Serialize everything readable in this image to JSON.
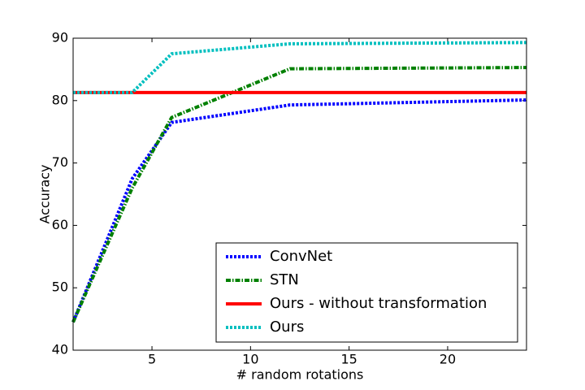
{
  "chart_data": {
    "type": "line",
    "x_label": "# random rotations",
    "y_label": "Accuracy",
    "x": [
      1,
      4,
      6,
      12,
      24
    ],
    "series": [
      {
        "name": "ConvNet",
        "color": "#0000ff",
        "linestyle": "dotted",
        "values": [
          44.5,
          67.5,
          76.5,
          79.3,
          80.1
        ]
      },
      {
        "name": "STN",
        "color": "#008000",
        "linestyle": "dashdot",
        "values": [
          44.5,
          66,
          77.3,
          85.1,
          85.3
        ]
      },
      {
        "name": "Ours - without transformation",
        "color": "#ff0000",
        "linestyle": "solid",
        "values": [
          81.3,
          81.3,
          81.3,
          81.3,
          81.3
        ]
      },
      {
        "name": "Ours",
        "color": "#00bfbf",
        "linestyle": "dotted",
        "values": [
          81.3,
          81.3,
          87.5,
          89.1,
          89.3
        ]
      }
    ],
    "xlim": [
      1,
      24
    ],
    "xticks": [
      5,
      10,
      15,
      20
    ],
    "ylim": [
      40,
      90
    ],
    "yticks": [
      40,
      50,
      60,
      70,
      80,
      90
    ],
    "legend": "lower right"
  }
}
